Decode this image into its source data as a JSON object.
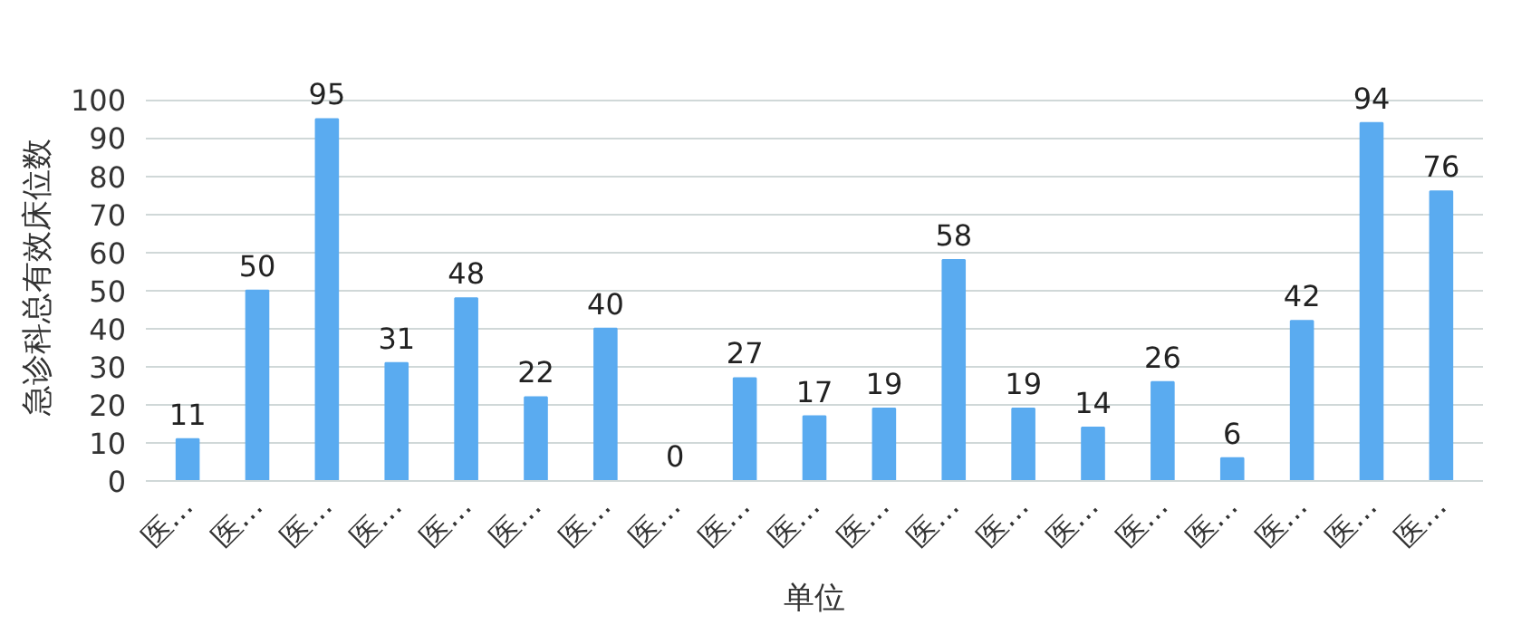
{
  "chart_data": {
    "type": "bar",
    "xlabel": "单位",
    "ylabel": "急诊科总有效床位数",
    "categories": [
      "医…",
      "医…",
      "医…",
      "医…",
      "医…",
      "医…",
      "医…",
      "医…",
      "医…",
      "医…",
      "医…",
      "医…",
      "医…",
      "医…",
      "医…",
      "医…",
      "医…",
      "医…",
      "医…"
    ],
    "values": [
      11,
      50,
      95,
      31,
      48,
      22,
      40,
      0,
      27,
      17,
      19,
      58,
      19,
      14,
      26,
      6,
      42,
      94,
      76
    ],
    "color": "#5aabf0",
    "ylim": [
      0,
      100
    ],
    "yticks": [
      0,
      10,
      20,
      30,
      40,
      50,
      60,
      70,
      80,
      90,
      100
    ],
    "grid": "y",
    "data_labels": true
  }
}
